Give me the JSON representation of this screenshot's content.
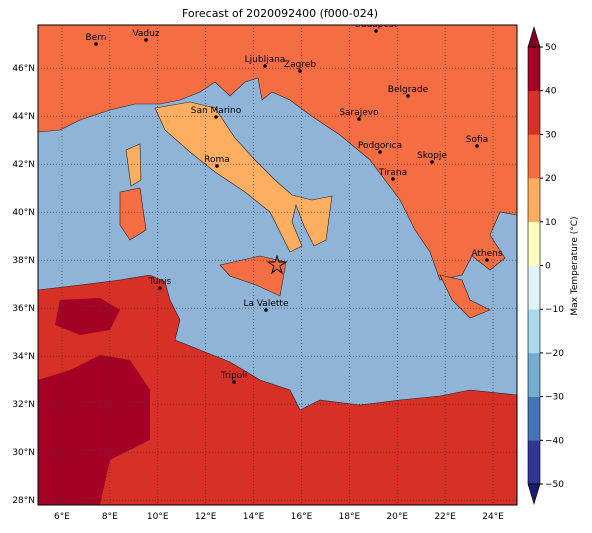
{
  "title": "Forecast of 2020092400 (f000-024)",
  "map": {
    "lonlim": [
      5,
      25
    ],
    "latlim": [
      27.8,
      47.8
    ],
    "lon_ticks": [
      {
        "value": 6,
        "label": "6°E"
      },
      {
        "value": 8,
        "label": "8°E"
      },
      {
        "value": 10,
        "label": "10°E"
      },
      {
        "value": 12,
        "label": "12°E"
      },
      {
        "value": 14,
        "label": "14°E"
      },
      {
        "value": 16,
        "label": "16°E"
      },
      {
        "value": 18,
        "label": "18°E"
      },
      {
        "value": 20,
        "label": "20°E"
      },
      {
        "value": 22,
        "label": "22°E"
      },
      {
        "value": 24,
        "label": "24°E"
      }
    ],
    "lat_ticks": [
      {
        "value": 28,
        "label": "28°N"
      },
      {
        "value": 30,
        "label": "30°N"
      },
      {
        "value": 32,
        "label": "32°N"
      },
      {
        "value": 34,
        "label": "34°N"
      },
      {
        "value": 36,
        "label": "36°N"
      },
      {
        "value": 38,
        "label": "38°N"
      },
      {
        "value": 40,
        "label": "40°N"
      },
      {
        "value": 42,
        "label": "42°N"
      },
      {
        "value": 44,
        "label": "44°N"
      },
      {
        "value": 46,
        "label": "46°N"
      }
    ],
    "cities": [
      "Bern",
      "Vaduz",
      "Budapest",
      "Ljubljana",
      "Zagreb",
      "Belgrade",
      "San Marino",
      "Sarajevo",
      "Sofia",
      "Podgorica",
      "Skopje",
      "Roma",
      "Tirana",
      "Athens",
      "Tunis",
      "La Valette",
      "Tripoli"
    ]
  },
  "colorbar": {
    "label": "Max Temperature (°C)",
    "lim": [
      -50,
      50
    ],
    "ticks": [
      {
        "value": -50,
        "label": "−50"
      },
      {
        "value": -40,
        "label": "−40"
      },
      {
        "value": -30,
        "label": "−30"
      },
      {
        "value": -20,
        "label": "−20"
      },
      {
        "value": -10,
        "label": "−10"
      },
      0,
      10,
      20,
      30,
      40,
      50
    ],
    "colors": [
      "#313695",
      "#4575b4",
      "#74add1",
      "#abd9e9",
      "#e0f3f8",
      "#ffffbf",
      "#fdae61",
      "#f46d43",
      "#d73027",
      "#a50026"
    ],
    "under_color": "#1a1a6e",
    "over_color": "#800026"
  }
}
